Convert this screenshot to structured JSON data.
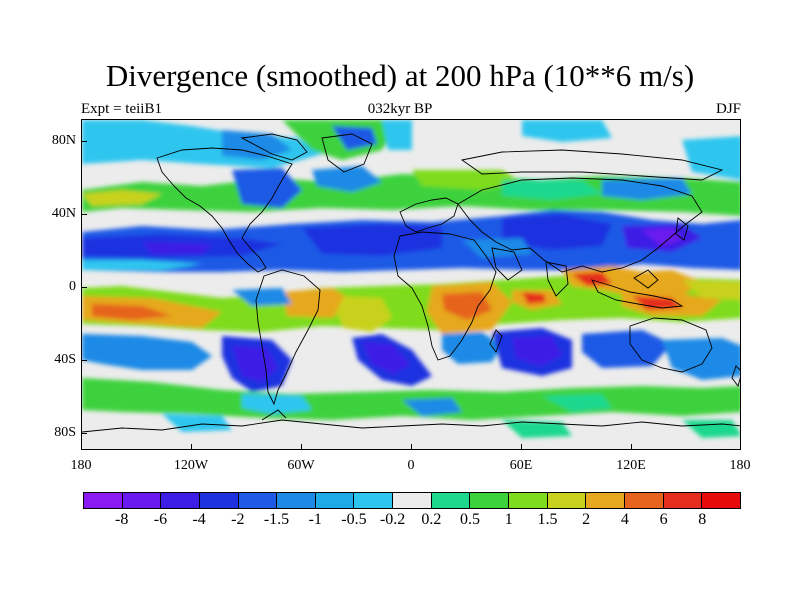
{
  "title": "Divergence (smoothed) at 200 hPa (10**6 m/s)",
  "left_subtitle": "Expt = teiiB1",
  "center_subtitle": "032kyr BP",
  "right_subtitle": "DJF",
  "lat_labels": [
    "80N",
    "40N",
    "0",
    "40S",
    "80S"
  ],
  "lon_labels": [
    "180",
    "120W",
    "60W",
    "0",
    "60E",
    "120E",
    "180"
  ],
  "colorbar": {
    "labels": [
      "-8",
      "-6",
      "-4",
      "-2",
      "-1.5",
      "-1",
      "-0.5",
      "-0.2",
      "0.2",
      "0.5",
      "1",
      "1.5",
      "2",
      "4",
      "6",
      "8"
    ],
    "colors": [
      "#8b1af2",
      "#6a1aef",
      "#3c1ee6",
      "#1e32e0",
      "#1e5ae6",
      "#1e8ae6",
      "#1eaae6",
      "#2ec6ef",
      "#ececec",
      "#1ed88e",
      "#3cd23c",
      "#7edc1e",
      "#c8d21e",
      "#e6a81e",
      "#e6641e",
      "#e62e1e",
      "#e60a0a"
    ]
  },
  "colors": {
    "background": "#ececec",
    "coast": "#000000"
  }
}
